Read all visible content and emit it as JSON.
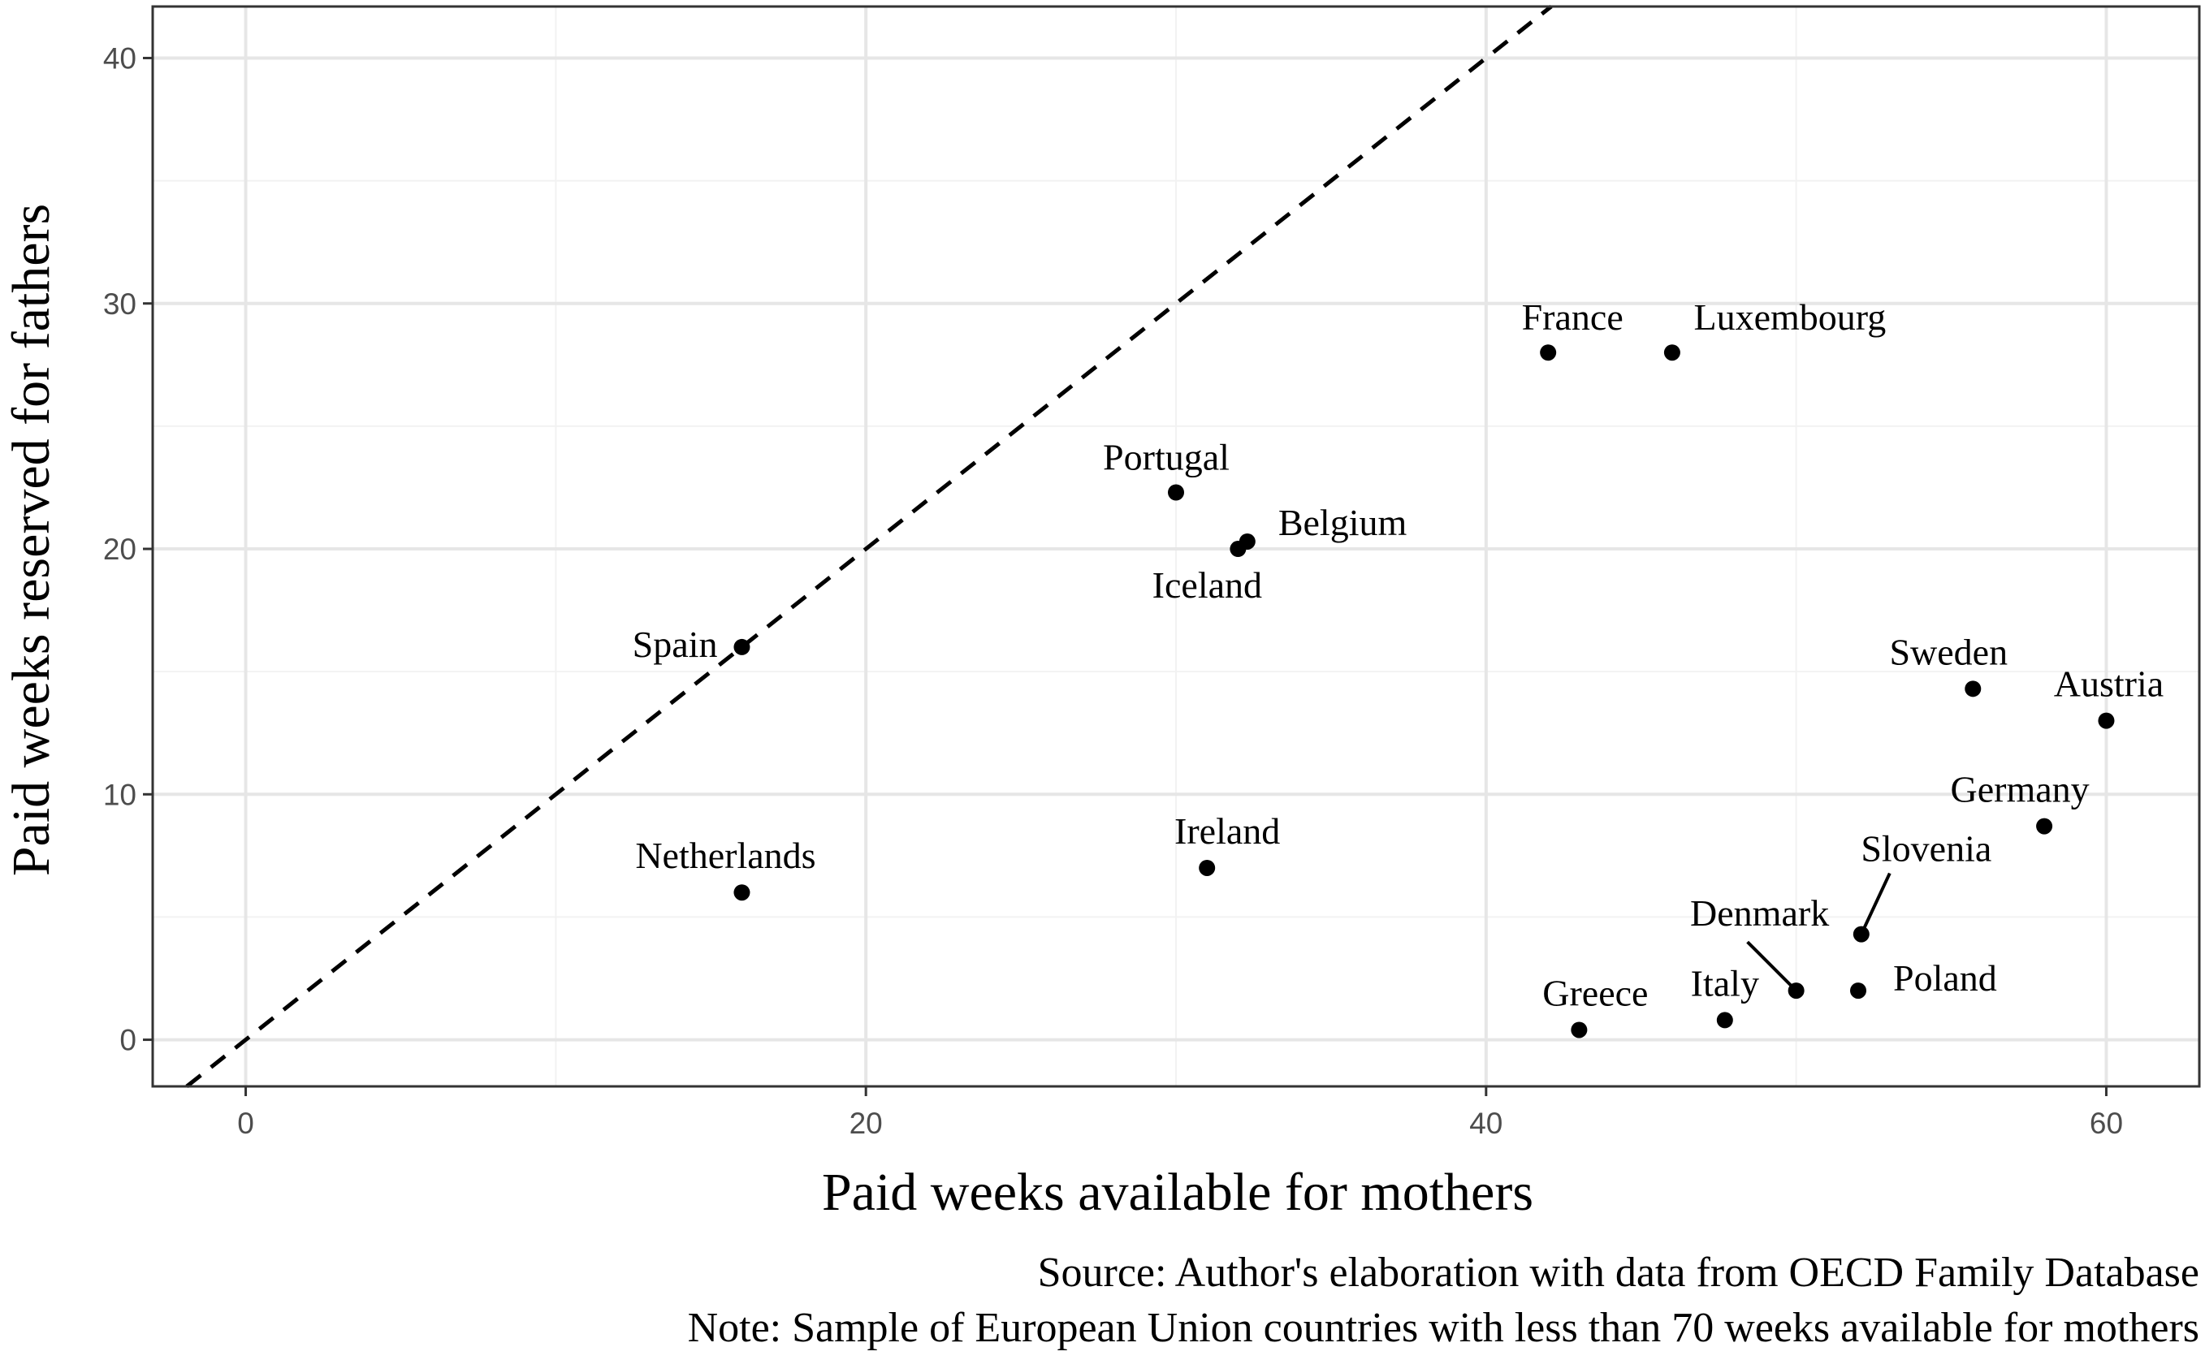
{
  "chart_data": {
    "type": "scatter",
    "title": "",
    "xlabel": "Paid weeks available for mothers",
    "ylabel": "Paid weeks reserved for fathers",
    "xlim": [
      -3,
      63
    ],
    "ylim": [
      -1.9,
      42.1
    ],
    "x_ticks": [
      0,
      20,
      40,
      60
    ],
    "y_ticks": [
      0,
      10,
      20,
      30,
      40
    ],
    "grid": true,
    "reference_line": {
      "type": "y=x",
      "style": "dashed"
    },
    "points": [
      {
        "label": "France",
        "x": 42,
        "y": 28
      },
      {
        "label": "Luxembourg",
        "x": 46,
        "y": 28
      },
      {
        "label": "Portugal",
        "x": 30,
        "y": 22.3
      },
      {
        "label": "Belgium",
        "x": 32.3,
        "y": 20.3
      },
      {
        "label": "Iceland",
        "x": 32,
        "y": 20
      },
      {
        "label": "Spain",
        "x": 16,
        "y": 16
      },
      {
        "label": "Sweden",
        "x": 55.7,
        "y": 14.3
      },
      {
        "label": "Austria",
        "x": 60,
        "y": 13
      },
      {
        "label": "Germany",
        "x": 58,
        "y": 8.7
      },
      {
        "label": "Netherlands",
        "x": 16,
        "y": 6
      },
      {
        "label": "Ireland",
        "x": 31,
        "y": 7
      },
      {
        "label": "Slovenia",
        "x": 52.1,
        "y": 4.3
      },
      {
        "label": "Denmark",
        "x": 50,
        "y": 2
      },
      {
        "label": "Poland",
        "x": 52,
        "y": 2
      },
      {
        "label": "Italy",
        "x": 47.7,
        "y": 0.8
      },
      {
        "label": "Greece",
        "x": 43,
        "y": 0.4
      }
    ],
    "captions": [
      "Source: Author's elaboration with data from OECD Family Database",
      "Note: Sample of European Union countries with less than 70 weeks available for mothers"
    ]
  }
}
